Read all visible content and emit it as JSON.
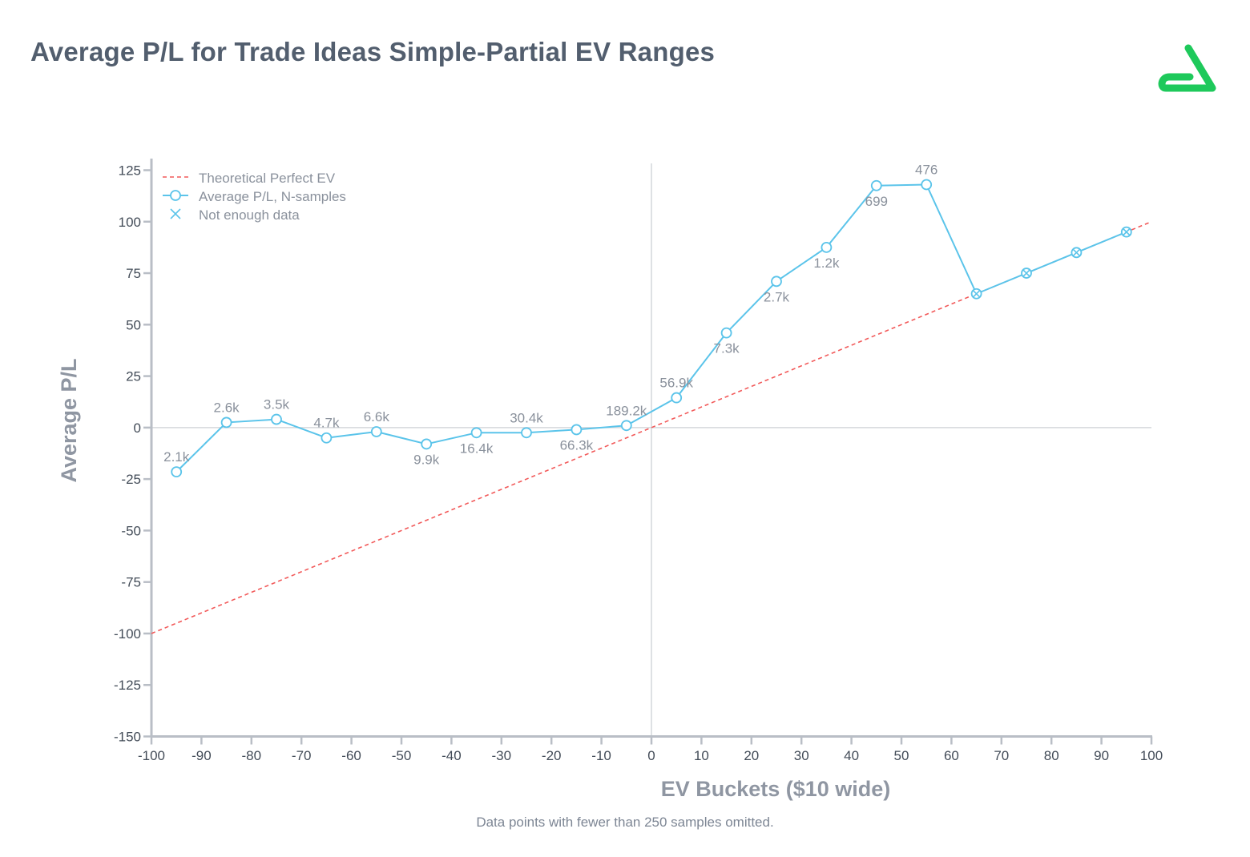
{
  "title": "Average P/L for Trade Ideas Simple-Partial EV Ranges",
  "footnote": "Data points with fewer than 250 samples omitted.",
  "colors": {
    "series": "#5bc4ea",
    "theoretical": "#f25a5a",
    "axis": "#b9bec6",
    "zero_line": "#d4d7dc",
    "logo": "#1ec95b",
    "text": "#434c58"
  },
  "logo_icon": "brand-logo-icon",
  "chart_data": {
    "type": "line",
    "xlabel": "EV Buckets ($10 wide)",
    "ylabel": "Average P/L",
    "xlim": [
      -100,
      100
    ],
    "ylim": [
      -150,
      125
    ],
    "x_ticks": [
      -100,
      -90,
      -80,
      -70,
      -60,
      -50,
      -40,
      -30,
      -20,
      -10,
      0,
      10,
      20,
      30,
      40,
      50,
      60,
      70,
      80,
      90,
      100
    ],
    "y_ticks": [
      125,
      100,
      75,
      50,
      25,
      0,
      -25,
      -50,
      -75,
      -100,
      -125,
      -150
    ],
    "grid": false,
    "legend_position": "top-left",
    "legend": [
      {
        "label": "Theoretical Perfect EV",
        "style": "dashed-line"
      },
      {
        "label": "Average P/L, N-samples",
        "style": "line-circle"
      },
      {
        "label": "Not enough data",
        "style": "x-marker"
      }
    ],
    "theoretical_line": {
      "x": [
        -100,
        100
      ],
      "y": [
        -100,
        100
      ]
    },
    "series": [
      {
        "x": [
          -95,
          -85,
          -75,
          -65,
          -55,
          -45,
          -35,
          -25,
          -15,
          -5,
          5,
          15,
          25,
          35,
          45,
          55
        ],
        "y": [
          -21.5,
          2.5,
          4,
          -5,
          -2,
          -8,
          -2.5,
          -2.5,
          -1,
          1,
          14.5,
          46,
          71,
          87.5,
          117.5,
          118
        ],
        "labels": [
          "2.1k",
          "2.6k",
          "3.5k",
          "4.7k",
          "6.6k",
          "9.9k",
          "16.4k",
          "30.4k",
          "66.3k",
          "189.2k",
          "56.9k",
          "7.3k",
          "2.7k",
          "1.2k",
          "699",
          "476"
        ],
        "label_pos": [
          "above",
          "above",
          "above",
          "above",
          "above",
          "below",
          "below",
          "above",
          "below",
          "above",
          "above",
          "below",
          "below",
          "below",
          "below",
          "above"
        ]
      }
    ],
    "not_enough_data": {
      "x": [
        65,
        75,
        85,
        95
      ],
      "y": [
        65,
        75,
        85,
        95
      ]
    }
  }
}
